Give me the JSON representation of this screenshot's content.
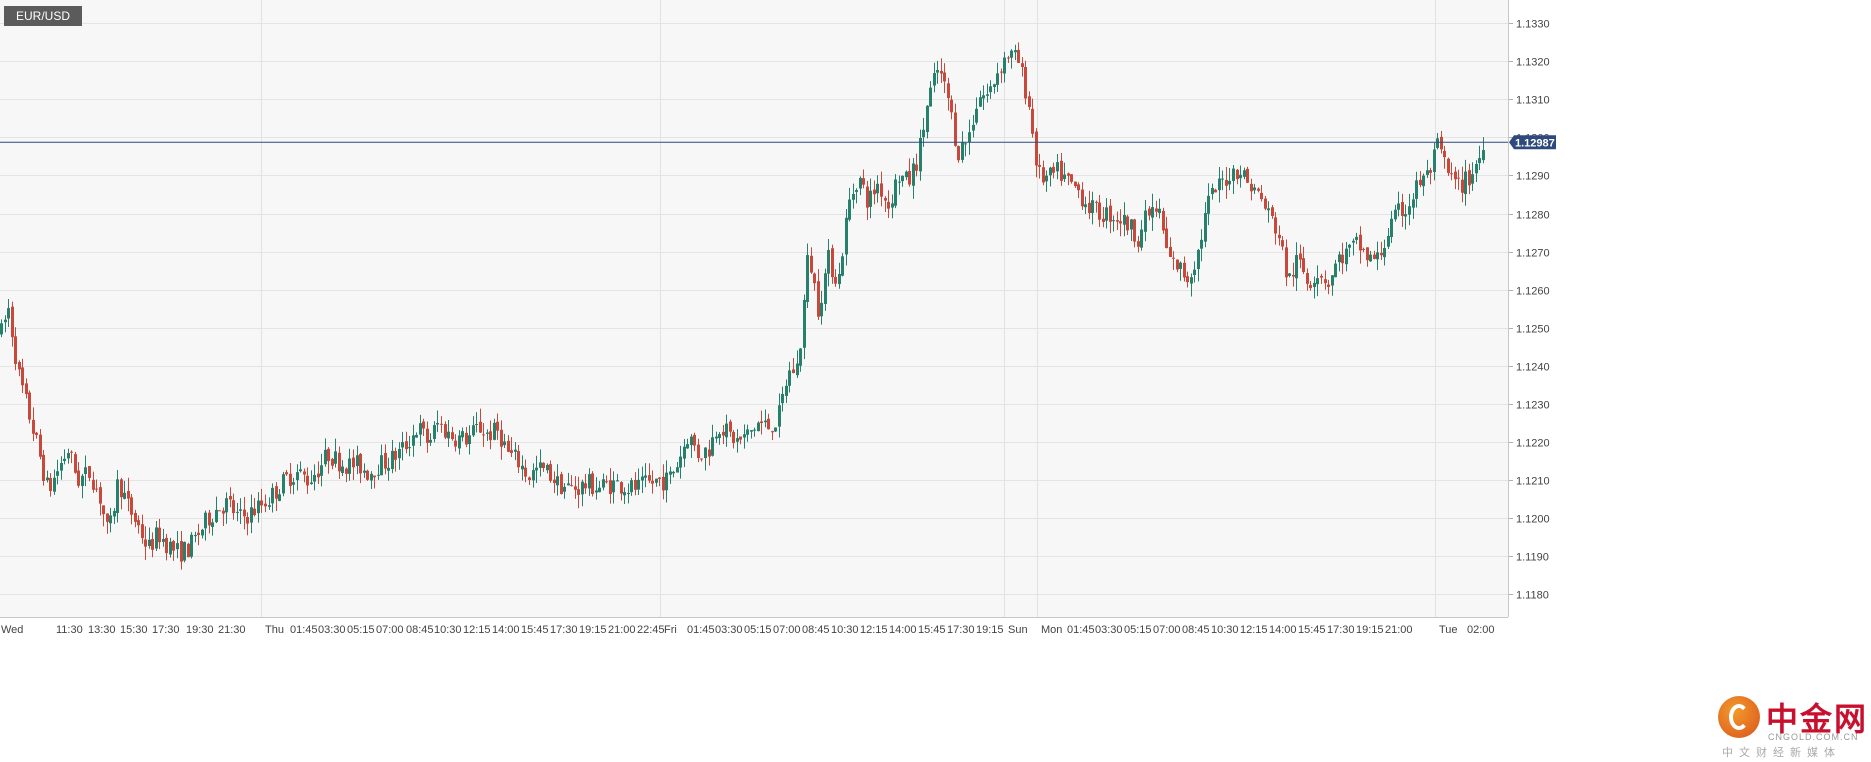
{
  "symbol": "EUR/USD",
  "current_price_label": "1.12987",
  "logo": {
    "name": "中金网",
    "domain": "CNGOLD.COM.CN",
    "tagline": "中文财经新媒体"
  },
  "colors": {
    "up": "#26806c",
    "down": "#c9483c",
    "price_line": "#2e4a7d",
    "grid": "#e6e6e6",
    "background": "#f7f7f7"
  },
  "chart_data": {
    "type": "candlestick",
    "title": "EUR/USD",
    "xlabel": "",
    "ylabel": "",
    "ylim": [
      1.118,
      1.1335
    ],
    "y_ticks": [
      1.133,
      1.132,
      1.131,
      1.13,
      1.129,
      1.128,
      1.127,
      1.126,
      1.125,
      1.124,
      1.123,
      1.122,
      1.121,
      1.12,
      1.119,
      1.118
    ],
    "y_tick_labels": [
      "1.1330",
      "1.1320",
      "1.1310",
      "1.1300",
      "1.1290",
      "1.1280",
      "1.1270",
      "1.1260",
      "1.1250",
      "1.1240",
      "1.1230",
      "1.1220",
      "1.1210",
      "1.1200",
      "1.1190",
      "1.1180"
    ],
    "x_labels": [
      "Wed",
      "11:30",
      "13:30",
      "15:30",
      "17:30",
      "19:30",
      "21:30",
      "Thu",
      "01:45",
      "03:30",
      "05:15",
      "07:00",
      "08:45",
      "10:30",
      "12:15",
      "14:00",
      "15:45",
      "17:30",
      "19:15",
      "21:00",
      "22:45",
      "Fri",
      "01:45",
      "03:30",
      "05:15",
      "07:00",
      "08:45",
      "10:30",
      "12:15",
      "14:00",
      "15:45",
      "17:30",
      "19:15",
      "Sun",
      "Mon",
      "01:45",
      "03:30",
      "05:15",
      "07:00",
      "08:45",
      "10:30",
      "12:15",
      "14:00",
      "15:45",
      "17:30",
      "19:15",
      "21:00",
      "Tue",
      "02:00"
    ],
    "session_separators": [
      "Thu",
      "Fri",
      "Sun",
      "Mon",
      "Tue"
    ],
    "current_price": 1.12987,
    "grid": true,
    "price_path": [
      [
        0,
        1.1248
      ],
      [
        8,
        1.1255
      ],
      [
        18,
        1.1238
      ],
      [
        28,
        1.1228
      ],
      [
        38,
        1.1218
      ],
      [
        48,
        1.1207
      ],
      [
        58,
        1.1213
      ],
      [
        68,
        1.1218
      ],
      [
        78,
        1.121
      ],
      [
        90,
        1.1212
      ],
      [
        100,
        1.1205
      ],
      [
        108,
        1.1195
      ],
      [
        118,
        1.121
      ],
      [
        128,
        1.1203
      ],
      [
        138,
        1.1198
      ],
      [
        148,
        1.1192
      ],
      [
        158,
        1.1196
      ],
      [
        168,
        1.1193
      ],
      [
        178,
        1.1191
      ],
      [
        188,
        1.1192
      ],
      [
        198,
        1.1196
      ],
      [
        208,
        1.12
      ],
      [
        218,
        1.1203
      ],
      [
        228,
        1.1204
      ],
      [
        238,
        1.12
      ],
      [
        248,
        1.1201
      ],
      [
        258,
        1.1203
      ],
      [
        268,
        1.1205
      ],
      [
        278,
        1.1208
      ],
      [
        288,
        1.1211
      ],
      [
        298,
        1.1212
      ],
      [
        308,
        1.121
      ],
      [
        318,
        1.1213
      ],
      [
        328,
        1.1217
      ],
      [
        338,
        1.1215
      ],
      [
        348,
        1.1214
      ],
      [
        358,
        1.1214
      ],
      [
        368,
        1.1212
      ],
      [
        378,
        1.1214
      ],
      [
        388,
        1.1215
      ],
      [
        398,
        1.1217
      ],
      [
        408,
        1.122
      ],
      [
        418,
        1.1224
      ],
      [
        428,
        1.122
      ],
      [
        438,
        1.1225
      ],
      [
        448,
        1.1222
      ],
      [
        458,
        1.1221
      ],
      [
        468,
        1.1221
      ],
      [
        478,
        1.1224
      ],
      [
        488,
        1.1222
      ],
      [
        498,
        1.1223
      ],
      [
        508,
        1.1217
      ],
      [
        518,
        1.1215
      ],
      [
        528,
        1.1211
      ],
      [
        538,
        1.1213
      ],
      [
        548,
        1.1212
      ],
      [
        558,
        1.1209
      ],
      [
        568,
        1.1208
      ],
      [
        578,
        1.1208
      ],
      [
        588,
        1.1209
      ],
      [
        598,
        1.1208
      ],
      [
        608,
        1.1209
      ],
      [
        618,
        1.1209
      ],
      [
        628,
        1.1208
      ],
      [
        638,
        1.1208
      ],
      [
        648,
        1.1209
      ],
      [
        658,
        1.121
      ],
      [
        668,
        1.121
      ],
      [
        678,
        1.1215
      ],
      [
        688,
        1.1222
      ],
      [
        698,
        1.1217
      ],
      [
        708,
        1.1218
      ],
      [
        718,
        1.1225
      ],
      [
        728,
        1.1222
      ],
      [
        738,
        1.122
      ],
      [
        748,
        1.1222
      ],
      [
        758,
        1.1225
      ],
      [
        768,
        1.1224
      ],
      [
        778,
        1.1226
      ],
      [
        788,
        1.1238
      ],
      [
        798,
        1.124
      ],
      [
        808,
        1.127
      ],
      [
        818,
        1.1255
      ],
      [
        828,
        1.1268
      ],
      [
        838,
        1.1262
      ],
      [
        848,
        1.1282
      ],
      [
        858,
        1.129
      ],
      [
        868,
        1.1283
      ],
      [
        878,
        1.1288
      ],
      [
        888,
        1.1282
      ],
      [
        898,
        1.129
      ],
      [
        908,
        1.1288
      ],
      [
        918,
        1.1295
      ],
      [
        928,
        1.131
      ],
      [
        938,
        1.1318
      ],
      [
        948,
        1.131
      ],
      [
        958,
        1.1296
      ],
      [
        968,
        1.13
      ],
      [
        978,
        1.1311
      ],
      [
        988,
        1.1311
      ],
      [
        998,
        1.1318
      ],
      [
        1008,
        1.1322
      ],
      [
        1018,
        1.132
      ],
      [
        1028,
        1.131
      ],
      [
        1038,
        1.129
      ],
      [
        1048,
        1.1289
      ],
      [
        1058,
        1.1291
      ],
      [
        1068,
        1.1288
      ],
      [
        1078,
        1.1286
      ],
      [
        1088,
        1.1282
      ],
      [
        1098,
        1.128
      ],
      [
        1108,
        1.128
      ],
      [
        1118,
        1.1279
      ],
      [
        1128,
        1.1277
      ],
      [
        1138,
        1.1274
      ],
      [
        1148,
        1.128
      ],
      [
        1158,
        1.1281
      ],
      [
        1168,
        1.1268
      ],
      [
        1178,
        1.1266
      ],
      [
        1188,
        1.1263
      ],
      [
        1198,
        1.127
      ],
      [
        1208,
        1.1283
      ],
      [
        1218,
        1.1287
      ],
      [
        1228,
        1.129
      ],
      [
        1238,
        1.1292
      ],
      [
        1248,
        1.1288
      ],
      [
        1258,
        1.1285
      ],
      [
        1268,
        1.128
      ],
      [
        1278,
        1.1275
      ],
      [
        1288,
        1.1262
      ],
      [
        1298,
        1.1268
      ],
      [
        1308,
        1.1262
      ],
      [
        1318,
        1.1265
      ],
      [
        1328,
        1.1262
      ],
      [
        1338,
        1.1268
      ],
      [
        1348,
        1.127
      ],
      [
        1358,
        1.1272
      ],
      [
        1368,
        1.1268
      ],
      [
        1378,
        1.1268
      ],
      [
        1388,
        1.1275
      ],
      [
        1398,
        1.128
      ],
      [
        1408,
        1.1282
      ],
      [
        1418,
        1.1288
      ],
      [
        1428,
        1.129
      ],
      [
        1438,
        1.1298
      ],
      [
        1448,
        1.129
      ],
      [
        1458,
        1.1287
      ],
      [
        1468,
        1.1289
      ],
      [
        1478,
        1.1294
      ],
      [
        1485,
        1.1298
      ]
    ]
  }
}
